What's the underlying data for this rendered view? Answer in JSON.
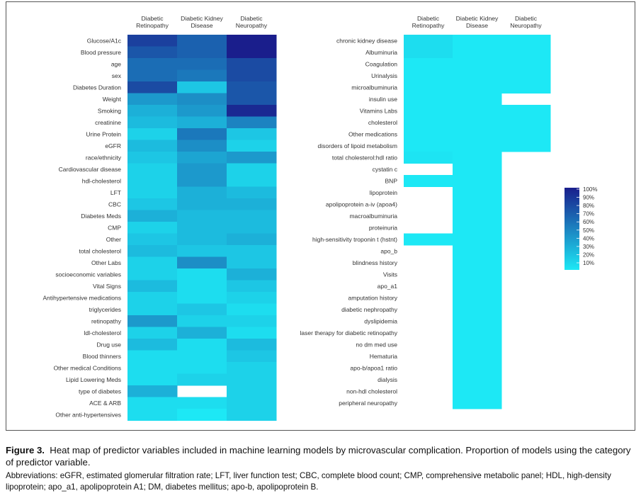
{
  "figure": {
    "label": "Figure 3.",
    "caption": "Heat map of predictor variables included in machine learning models by microvascular complication. Proportion of models using the category of predictor variable.",
    "abbreviations": "Abbreviations: eGFR, estimated glomerular filtration rate; LFT, liver function test; CBC, complete blood count; CMP, comprehensive metabolic panel; HDL, high-density lipoprotein; apo_a1, apolipoprotein A1; DM, diabetes mellitus; apo-b, apolipoprotein B."
  },
  "chart_data": [
    {
      "type": "heatmap",
      "columns": [
        "Diabetic Retinopathy",
        "Diabetic Kidney Disease",
        "Diabetic Neuropathy"
      ],
      "rows": [
        "Glucose/A1c",
        "Blood pressure",
        "age",
        "sex",
        "Diabetes Duration",
        "Weight",
        "Smoking",
        "creatinine",
        "Urine Protein",
        "eGFR",
        "race/ethnicity",
        "Cardiovascular disease",
        "hdl-cholesterol",
        "LFT",
        "CBC",
        "Diabetes Meds",
        "CMP",
        "Other",
        "total cholesterol",
        "Other Labs",
        "socioeconomic variables",
        "Vital Signs",
        "Antihypertensive medications",
        "triglycerides",
        "retinopathy",
        "ldl-cholesterol",
        "Drug use",
        "Blood thinners",
        "Other medical Conditions",
        "Lipid Lowering Meds",
        "type of diabetes",
        "ACE & ARB",
        "Other anti-hypertensives"
      ],
      "values": [
        [
          85,
          70,
          100
        ],
        [
          75,
          70,
          100
        ],
        [
          65,
          65,
          80
        ],
        [
          65,
          60,
          80
        ],
        [
          80,
          25,
          75
        ],
        [
          45,
          50,
          75
        ],
        [
          35,
          45,
          95
        ],
        [
          30,
          35,
          55
        ],
        [
          20,
          60,
          25
        ],
        [
          30,
          50,
          20
        ],
        [
          25,
          40,
          45
        ],
        [
          20,
          45,
          20
        ],
        [
          20,
          45,
          20
        ],
        [
          20,
          35,
          30
        ],
        [
          25,
          35,
          35
        ],
        [
          35,
          30,
          30
        ],
        [
          20,
          30,
          30
        ],
        [
          25,
          30,
          35
        ],
        [
          30,
          25,
          25
        ],
        [
          20,
          50,
          25
        ],
        [
          20,
          15,
          35
        ],
        [
          30,
          15,
          25
        ],
        [
          20,
          15,
          20
        ],
        [
          20,
          25,
          15
        ],
        [
          45,
          20,
          20
        ],
        [
          20,
          35,
          15
        ],
        [
          30,
          15,
          30
        ],
        [
          15,
          15,
          25
        ],
        [
          15,
          15,
          20
        ],
        [
          15,
          20,
          20
        ],
        [
          35,
          null,
          20
        ],
        [
          15,
          15,
          20
        ],
        [
          15,
          10,
          20
        ]
      ],
      "xlabel": "",
      "ylabel": ""
    },
    {
      "type": "heatmap",
      "columns": [
        "Diabetic Retinopathy",
        "Diabetic Kidney Disease",
        "Diabetic Neuropathy"
      ],
      "rows": [
        "chronic kidney disease",
        "Albuminuria",
        "Coagulation",
        "Urinalysis",
        "microalbuminuria",
        "insulin use",
        "Vitamins Labs",
        "cholesterol",
        "Other medications",
        "disorders of lipoid metabolism",
        "total cholesterol:hdl ratio",
        "cystatin c",
        "BNP",
        "lipoprotein",
        "apolipoprotein a-iv (apoa4)",
        "macroalbuminuria",
        "proteinuria",
        "high-sensitivity troponin t (hstnt)",
        "apo_b",
        "blindness history",
        "Visits",
        "apo_a1",
        "amputation history",
        "diabetic nephropathy",
        "dyslipidemia",
        "laser therapy for diabetic retinopathy",
        "no dm med use",
        "Hematuria",
        "apo-b/apoa1 ratio",
        "dialysis",
        "non-hdl cholesterol",
        "peripheral neuropathy"
      ],
      "values": [
        [
          15,
          10,
          10
        ],
        [
          15,
          10,
          10
        ],
        [
          10,
          10,
          10
        ],
        [
          10,
          10,
          10
        ],
        [
          10,
          10,
          10
        ],
        [
          10,
          10,
          null
        ],
        [
          10,
          10,
          10
        ],
        [
          10,
          10,
          10
        ],
        [
          10,
          10,
          10
        ],
        [
          10,
          10,
          10
        ],
        [
          12,
          10,
          null
        ],
        [
          null,
          10,
          null
        ],
        [
          10,
          10,
          null
        ],
        [
          null,
          10,
          null
        ],
        [
          null,
          10,
          null
        ],
        [
          null,
          10,
          null
        ],
        [
          null,
          10,
          null
        ],
        [
          10,
          10,
          null
        ],
        [
          null,
          10,
          null
        ],
        [
          null,
          10,
          null
        ],
        [
          null,
          10,
          null
        ],
        [
          null,
          10,
          null
        ],
        [
          null,
          10,
          null
        ],
        [
          null,
          10,
          null
        ],
        [
          null,
          10,
          null
        ],
        [
          null,
          10,
          null
        ],
        [
          null,
          10,
          null
        ],
        [
          null,
          10,
          null
        ],
        [
          null,
          10,
          null
        ],
        [
          null,
          10,
          null
        ],
        [
          null,
          10,
          null
        ],
        [
          null,
          10,
          null
        ]
      ],
      "xlabel": "",
      "ylabel": ""
    }
  ],
  "legend": {
    "ticks": [
      "100%",
      "90%",
      "80%",
      "70%",
      "60%",
      "50%",
      "40%",
      "30%",
      "20%",
      "10%"
    ],
    "color_high": "#1a1e8c",
    "color_low": "#1de8f5"
  }
}
